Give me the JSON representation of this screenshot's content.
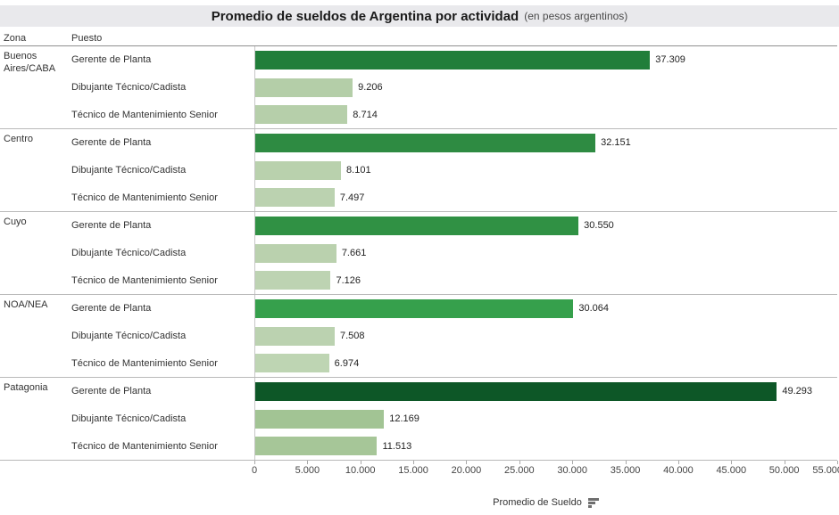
{
  "title": {
    "main": "Promedio de sueldos de Argentina por actividad",
    "subtitle": "(en pesos argentinos)"
  },
  "columns": {
    "zona": "Zona",
    "puesto": "Puesto"
  },
  "axis": {
    "title": "Promedio de Sueldo",
    "max": 55000,
    "ticks": [
      {
        "value": 0,
        "label": "0"
      },
      {
        "value": 5000,
        "label": "5.000"
      },
      {
        "value": 10000,
        "label": "10.000"
      },
      {
        "value": 15000,
        "label": "15.000"
      },
      {
        "value": 20000,
        "label": "20.000"
      },
      {
        "value": 25000,
        "label": "25.000"
      },
      {
        "value": 30000,
        "label": "30.000"
      },
      {
        "value": 35000,
        "label": "35.000"
      },
      {
        "value": 40000,
        "label": "40.000"
      },
      {
        "value": 45000,
        "label": "45.000"
      },
      {
        "value": 50000,
        "label": "50.000"
      },
      {
        "value": 55000,
        "label": "55.000"
      }
    ]
  },
  "colors": {
    "title_band": "#e9e9ec",
    "dark_green_max": "#0d5727",
    "light_green_min": "#bed5b3",
    "separator": "#b9b9b9"
  },
  "chart_data": {
    "type": "bar",
    "orientation": "horizontal",
    "title": "Promedio de sueldos de Argentina por actividad (en pesos argentinos)",
    "xlabel": "Promedio de Sueldo",
    "xlim": [
      0,
      55000
    ],
    "legend": "none",
    "grid": "off",
    "color_encoding": "sequential-green-by-value",
    "zones": [
      {
        "zona": "Buenos Aires/CABA",
        "bars": [
          {
            "puesto": "Gerente de Planta",
            "value": 37309,
            "label": "37.309",
            "color": "#217e3a"
          },
          {
            "puesto": "Dibujante Técnico/Cadista",
            "value": 9206,
            "label": "9.206",
            "color": "#b4cea8"
          },
          {
            "puesto": "Técnico de Mantenimiento Senior",
            "value": 8714,
            "label": "8.714",
            "color": "#b6cfaa"
          }
        ]
      },
      {
        "zona": "Centro",
        "bars": [
          {
            "puesto": "Gerente de Planta",
            "value": 32151,
            "label": "32.151",
            "color": "#2e8b42"
          },
          {
            "puesto": "Dibujante Técnico/Cadista",
            "value": 8101,
            "label": "8.101",
            "color": "#b9d1ad"
          },
          {
            "puesto": "Técnico de Mantenimiento Senior",
            "value": 7497,
            "label": "7.497",
            "color": "#bbd2b0"
          }
        ]
      },
      {
        "zona": "Cuyo",
        "bars": [
          {
            "puesto": "Gerente de Planta",
            "value": 30550,
            "label": "30.550",
            "color": "#309144"
          },
          {
            "puesto": "Dibujante Técnico/Cadista",
            "value": 7661,
            "label": "7.661",
            "color": "#bad1ae"
          },
          {
            "puesto": "Técnico de Mantenimiento Senior",
            "value": 7126,
            "label": "7.126",
            "color": "#bdd3b2"
          }
        ]
      },
      {
        "zona": "NOA/NEA",
        "bars": [
          {
            "puesto": "Gerente de Planta",
            "value": 30064,
            "label": "30.064",
            "color": "#36a04c"
          },
          {
            "puesto": "Dibujante Técnico/Cadista",
            "value": 7508,
            "label": "7.508",
            "color": "#bbd2b0"
          },
          {
            "puesto": "Técnico de Mantenimiento Senior",
            "value": 6974,
            "label": "6.974",
            "color": "#bed5b3"
          }
        ]
      },
      {
        "zona": "Patagonia",
        "bars": [
          {
            "puesto": "Gerente de Planta",
            "value": 49293,
            "label": "49.293",
            "color": "#0d5727"
          },
          {
            "puesto": "Dibujante Técnico/Cadista",
            "value": 12169,
            "label": "12.169",
            "color": "#a2c494"
          },
          {
            "puesto": "Técnico de Mantenimiento Senior",
            "value": 11513,
            "label": "11.513",
            "color": "#a6c698"
          }
        ]
      }
    ]
  }
}
